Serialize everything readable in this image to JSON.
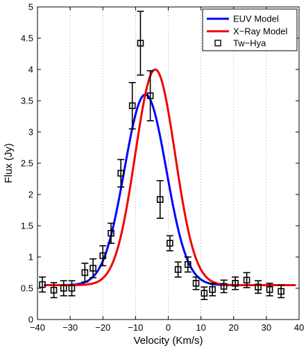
{
  "chart_data": {
    "type": "line",
    "title": "",
    "xlabel": "Velocity (Km/s)",
    "ylabel": "Flux (Jy)",
    "xlim": [
      -40,
      40
    ],
    "ylim": [
      0,
      5
    ],
    "xticks": [
      -40,
      -30,
      -20,
      -10,
      0,
      10,
      20,
      30,
      40
    ],
    "yticks": [
      0,
      0.5,
      1,
      1.5,
      2,
      2.5,
      3,
      3.5,
      4,
      4.5,
      5
    ],
    "ytick_labels": [
      "0",
      "0.5",
      "1",
      "1.5",
      "2",
      "2.5",
      "3",
      "3.5",
      "4",
      "4.5",
      "5"
    ],
    "grid": "vertical-dotted",
    "legend_position": "top-right",
    "series": [
      {
        "name": "EUV Model",
        "kind": "line",
        "color": "#0000ff",
        "model": {
          "baseline": 0.55,
          "amplitude": 3.05,
          "center": -7,
          "sigma": 6.4
        }
      },
      {
        "name": "X−Ray Model",
        "kind": "line",
        "color": "#ee0000",
        "model": {
          "baseline": 0.55,
          "amplitude": 3.45,
          "center": -4,
          "sigma": 6.1
        }
      },
      {
        "name": "Tw−Hya",
        "kind": "scatter-errorbar",
        "color": "#000000",
        "points": [
          {
            "x": -38.5,
            "y": 0.56,
            "err": 0.12
          },
          {
            "x": -35.0,
            "y": 0.47,
            "err": 0.12
          },
          {
            "x": -32.0,
            "y": 0.5,
            "err": 0.12
          },
          {
            "x": -29.5,
            "y": 0.5,
            "err": 0.12
          },
          {
            "x": -25.5,
            "y": 0.75,
            "err": 0.15
          },
          {
            "x": -23.0,
            "y": 0.82,
            "err": 0.15
          },
          {
            "x": -20.0,
            "y": 1.02,
            "err": 0.16
          },
          {
            "x": -17.5,
            "y": 1.38,
            "err": 0.16
          },
          {
            "x": -14.5,
            "y": 2.34,
            "err": 0.22
          },
          {
            "x": -11.0,
            "y": 3.42,
            "err": 0.37
          },
          {
            "x": -8.5,
            "y": 4.42,
            "err": 0.51
          },
          {
            "x": -5.5,
            "y": 3.58,
            "err": 0.4
          },
          {
            "x": -2.5,
            "y": 1.92,
            "err": 0.3
          },
          {
            "x": 0.5,
            "y": 1.22,
            "err": 0.12
          },
          {
            "x": 3.0,
            "y": 0.8,
            "err": 0.12
          },
          {
            "x": 6.0,
            "y": 0.88,
            "err": 0.12
          },
          {
            "x": 8.5,
            "y": 0.58,
            "err": 0.1
          },
          {
            "x": 11.0,
            "y": 0.42,
            "err": 0.1
          },
          {
            "x": 13.5,
            "y": 0.48,
            "err": 0.1
          },
          {
            "x": 17.0,
            "y": 0.53,
            "err": 0.1
          },
          {
            "x": 20.5,
            "y": 0.58,
            "err": 0.1
          },
          {
            "x": 24.0,
            "y": 0.63,
            "err": 0.12
          },
          {
            "x": 27.5,
            "y": 0.52,
            "err": 0.1
          },
          {
            "x": 31.0,
            "y": 0.48,
            "err": 0.1
          },
          {
            "x": 34.5,
            "y": 0.45,
            "err": 0.1
          }
        ]
      }
    ]
  }
}
